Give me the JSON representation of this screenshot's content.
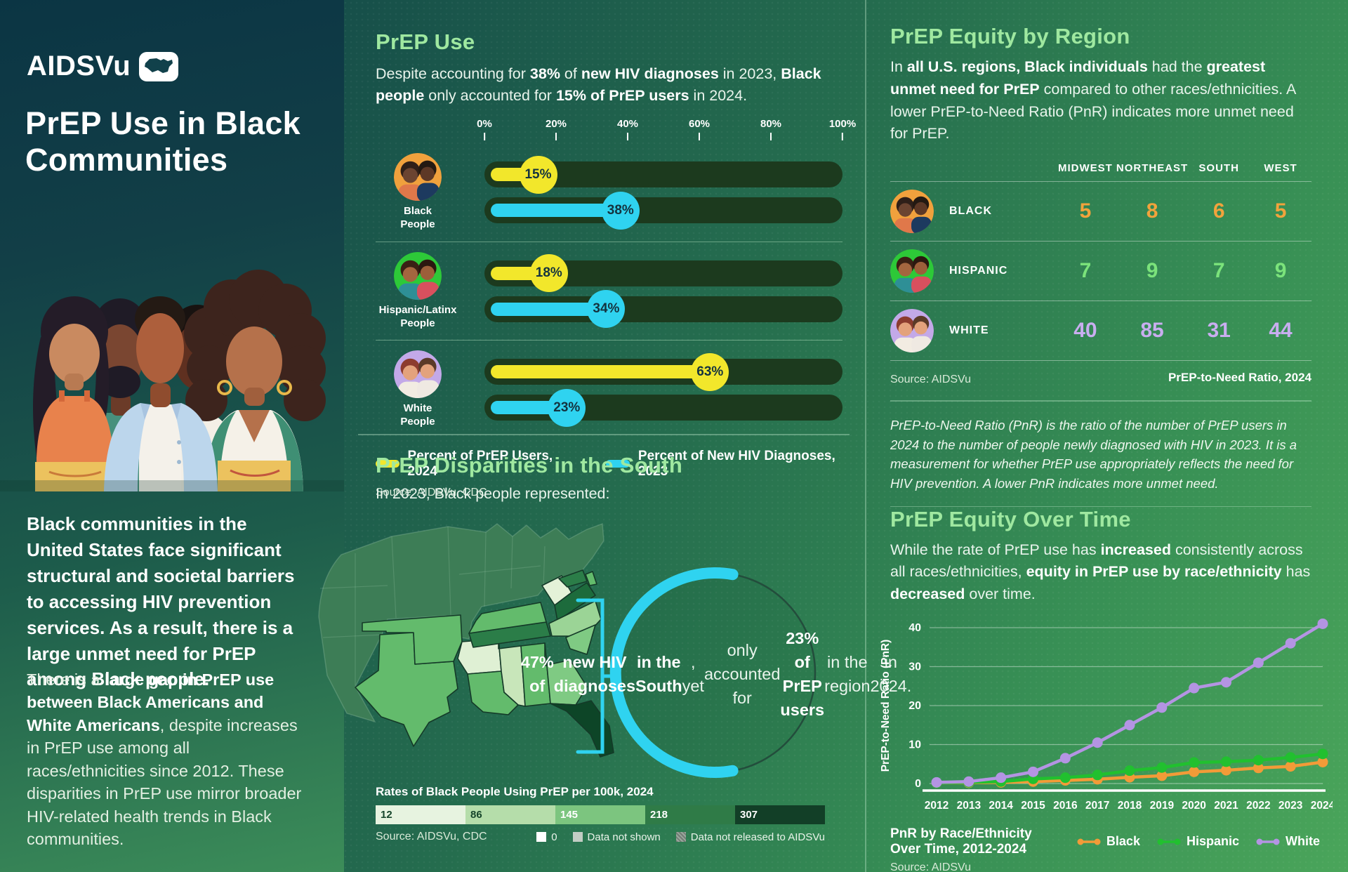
{
  "accent": {
    "heading_green": "#9fe8a0",
    "yellow": "#f2e72b",
    "cyan": "#2fd3f0",
    "track_dark": "#1c3a1e"
  },
  "sidebar": {
    "logo": "AIDSVu",
    "title": "PrEP Use in Black Communities",
    "para1": "Black communities in the United States face significant structural and societal barriers to accessing HIV prevention services. As a result, there is a large unmet need for PrEP among Black people.",
    "para2": [
      {
        "t": "There is a "
      },
      {
        "t": "large gap in PrEP use between Black Americans and White Americans",
        "b": true
      },
      {
        "t": ", despite increases in PrEP use among all races/ethnicities since 2012. These disparities in PrEP use mirror broader HIV-related health trends in Black communities."
      }
    ]
  },
  "prep_use": {
    "heading": "PrEP Use",
    "intro": [
      {
        "t": "Despite accounting for "
      },
      {
        "t": "38%",
        "b": true
      },
      {
        "t": " of "
      },
      {
        "t": "new HIV diagnoses",
        "b": true
      },
      {
        "t": " in 2023, "
      },
      {
        "t": "Black people",
        "b": true
      },
      {
        "t": " only accounted for "
      },
      {
        "t": "15% of PrEP users",
        "b": true
      },
      {
        "t": " in 2024."
      }
    ],
    "source": "Source: AIDSVu, CDC"
  },
  "south": {
    "heading": "PrEP Disparities in the South",
    "subtitle": "In 2023, Black people represented:",
    "circle_text": [
      {
        "t": "47% of",
        "b": true
      },
      {
        "br": true
      },
      {
        "t": "new HIV diagnoses",
        "b": true
      },
      {
        "br": true
      },
      {
        "t": "in the South",
        "b": true
      },
      {
        "t": ", yet"
      },
      {
        "br": true
      },
      {
        "t": "only accounted for"
      },
      {
        "br": true
      },
      {
        "t": "23% of PrEP users",
        "b": true
      },
      {
        "br": true
      },
      {
        "t": "in the region"
      },
      {
        "br": true
      },
      {
        "t": "in 2024."
      }
    ]
  },
  "equity_region": {
    "heading": "PrEP Equity by Region",
    "intro": [
      {
        "t": "In "
      },
      {
        "t": "all U.S. regions, Black individuals",
        "b": true
      },
      {
        "t": " had the "
      },
      {
        "t": "greatest unmet need for PrEP",
        "b": true
      },
      {
        "t": " compared to other races/ethnicities. A lower PrEP-to-Need Ratio (PnR) indicates more unmet need for PrEP."
      }
    ],
    "pnr_note": "PrEP-to-Need Ratio (PnR) is the ratio of the number of PrEP users in 2024 to the number of people newly diagnosed with HIV in 2023. It is a measurement for whether PrEP use appropriately reflects the need for HIV prevention. A lower PnR indicates more unmet need."
  },
  "equity_time": {
    "heading": "PrEP Equity Over Time",
    "intro": [
      {
        "t": "While the rate of PrEP use has "
      },
      {
        "t": "increased",
        "b": true
      },
      {
        "t": " consistently across all races/ethnicities, "
      },
      {
        "t": "equity in PrEP use by race/ethnicity",
        "b": true
      },
      {
        "t": " has "
      },
      {
        "t": "decreased",
        "b": true
      },
      {
        "t": " over time."
      }
    ]
  },
  "avatars": {
    "black": {
      "bg": "#f0a13d",
      "skinL": "#6b4431",
      "hairL": "#2e1f19",
      "topL": "#e0784a",
      "skinR": "#5d3826",
      "hairR": "#231912",
      "topR": "#1d3a5f"
    },
    "hispanic": {
      "bg": "#2dc938",
      "skinL": "#a4663f",
      "hairL": "#3a2014",
      "topL": "#2e8f96",
      "skinR": "#9c5f3a",
      "hairR": "#2b1810",
      "topR": "#d8505e"
    },
    "white": {
      "bg": "#c3a9e8",
      "skinL": "#e3a27c",
      "hairL": "#8c3b2e",
      "topL": "#f2ece2",
      "skinR": "#e3a27c",
      "hairR": "#5b3a28",
      "topR": "#efe9e2"
    }
  },
  "chart_data": [
    {
      "type": "bar",
      "title": "PrEP Use",
      "categories": [
        "Black People",
        "Hispanic/Latinx People",
        "White People"
      ],
      "category_avatars": [
        "black",
        "hispanic",
        "white"
      ],
      "series": [
        {
          "name": "Percent of PrEP Users, 2024",
          "color": "#f2e72b",
          "values": [
            15,
            18,
            63
          ]
        },
        {
          "name": "Percent of New HIV Diagnoses, 2023",
          "color": "#2fd3f0",
          "values": [
            38,
            34,
            23
          ]
        }
      ],
      "xlim": [
        0,
        100
      ],
      "tick_labels": [
        "0%",
        "20%",
        "40%",
        "60%",
        "80%",
        "100%"
      ],
      "source": "Source: AIDSVu, CDC"
    },
    {
      "type": "table",
      "title": "PrEP Equity by Region",
      "columns": [
        "MIDWEST",
        "NORTHEAST",
        "SOUTH",
        "WEST"
      ],
      "rows": [
        {
          "label": "BLACK",
          "avatar": "black",
          "color": "#f2a33c",
          "values": [
            5,
            8,
            6,
            5
          ]
        },
        {
          "label": "HISPANIC",
          "avatar": "hispanic",
          "color": "#7be37b",
          "values": [
            7,
            9,
            7,
            9
          ]
        },
        {
          "label": "WHITE",
          "avatar": "white",
          "color": "#c9aef0",
          "values": [
            40,
            85,
            31,
            44
          ]
        }
      ],
      "footer_left": "Source: AIDSVu",
      "footer_right": "PrEP-to-Need Ratio, 2024"
    },
    {
      "type": "heatmap",
      "title": "Rates of Black People Using PrEP per 100k, 2024",
      "legend_stops": [
        "12",
        "86",
        "145",
        "218",
        "307"
      ],
      "legend_colors": [
        "#e7f3e0",
        "#b5ddaa",
        "#7cc57f",
        "#2f7b47",
        "#123f27"
      ],
      "legend_text_colors": [
        "#16452b",
        "#16452b",
        "#ffffff",
        "#ffffff",
        "#ffffff"
      ],
      "legend_flags": [
        {
          "label": "0",
          "swatch": "#ffffff"
        },
        {
          "label": "Data not shown",
          "swatch": "#c2cdc4"
        },
        {
          "label": "Data not released to AIDSVu",
          "swatch": "#9aa79d",
          "pattern": true
        }
      ],
      "source": "Source: AIDSVu, CDC",
      "states": [
        {
          "abbr": "TX",
          "hex": "#63bb6c"
        },
        {
          "abbr": "OK",
          "hex": "#63bb6c"
        },
        {
          "abbr": "AR",
          "hex": "#dff0d4"
        },
        {
          "abbr": "LA",
          "hex": "#63bb6c"
        },
        {
          "abbr": "MS",
          "hex": "#c8e6ba"
        },
        {
          "abbr": "AL",
          "hex": "#63bb6c"
        },
        {
          "abbr": "GA",
          "hex": "#7fca83"
        },
        {
          "abbr": "FL",
          "hex": "#0d4527"
        },
        {
          "abbr": "TN",
          "hex": "#2b7d48"
        },
        {
          "abbr": "KY",
          "hex": "#63bb6c"
        },
        {
          "abbr": "WV",
          "hex": "#e4f2d8"
        },
        {
          "abbr": "VA",
          "hex": "#1d6b3c"
        },
        {
          "abbr": "NC",
          "hex": "#9bd496"
        },
        {
          "abbr": "SC",
          "hex": "#7fca83"
        },
        {
          "abbr": "MD",
          "hex": "#2b7d48"
        },
        {
          "abbr": "DE",
          "hex": "#63bb6c"
        }
      ]
    },
    {
      "type": "line",
      "title": "PrEP Equity Over Time",
      "ylabel": "PrEP-to-Need Ratio (PnR)",
      "ylim": [
        0,
        40
      ],
      "yticks": [
        0,
        10,
        20,
        30,
        40
      ],
      "x": [
        2012,
        2013,
        2014,
        2015,
        2016,
        2017,
        2018,
        2019,
        2020,
        2021,
        2022,
        2023,
        2024
      ],
      "series": [
        {
          "name": "Black",
          "color": "#f29b38",
          "values": [
            0.2,
            0.2,
            0.3,
            0.5,
            0.8,
            1.1,
            1.6,
            2.0,
            3.0,
            3.4,
            4.0,
            4.4,
            5.5
          ]
        },
        {
          "name": "Hispanic",
          "color": "#21c02f",
          "values": [
            0.2,
            0.3,
            0.5,
            1.2,
            1.5,
            2.2,
            3.3,
            4.1,
            5.4,
            5.6,
            6.0,
            6.7,
            7.6
          ]
        },
        {
          "name": "White",
          "color": "#b494e3",
          "values": [
            0.3,
            0.5,
            1.5,
            3.0,
            6.5,
            10.5,
            15.0,
            19.5,
            24.5,
            26.0,
            31.0,
            36.0,
            41.0
          ]
        }
      ],
      "legend_title": "PnR by Race/Ethnicity Over Time, 2012-2024",
      "source": "Source: AIDSVu"
    }
  ]
}
